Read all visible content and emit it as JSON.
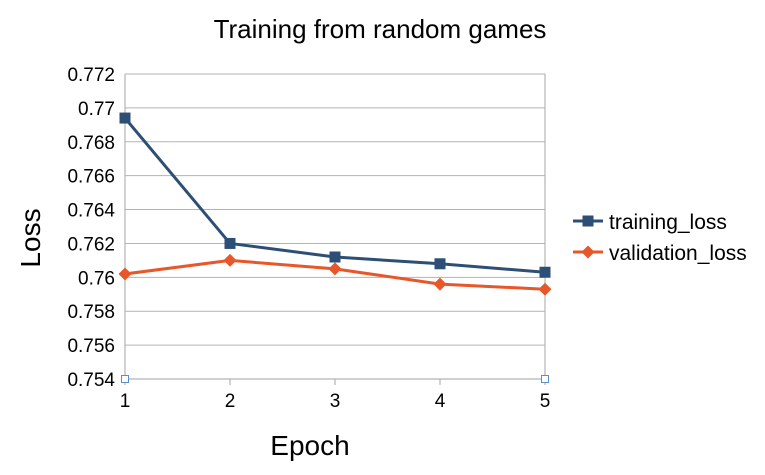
{
  "chart_data": {
    "type": "line",
    "title": "Training from random games",
    "xlabel": "Epoch",
    "ylabel": "Loss",
    "x": [
      1,
      2,
      3,
      4,
      5
    ],
    "xlim": [
      1,
      5
    ],
    "ylim": [
      0.754,
      0.772
    ],
    "y_tick_step": 0.002,
    "x_ticks": [
      "1",
      "2",
      "3",
      "4",
      "5"
    ],
    "y_ticks": [
      "0.754",
      "0.756",
      "0.758",
      "0.76",
      "0.762",
      "0.764",
      "0.766",
      "0.768",
      "0.77",
      "0.772"
    ],
    "grid": true,
    "legend_position": "right",
    "series": [
      {
        "name": "training_loss",
        "color": "#2e4f75",
        "marker": "square",
        "values": [
          0.7694,
          0.762,
          0.7612,
          0.7608,
          0.7603
        ]
      },
      {
        "name": "validation_loss",
        "color": "#e8572a",
        "marker": "diamond",
        "values": [
          0.7602,
          0.761,
          0.7605,
          0.7596,
          0.7593
        ]
      }
    ]
  }
}
